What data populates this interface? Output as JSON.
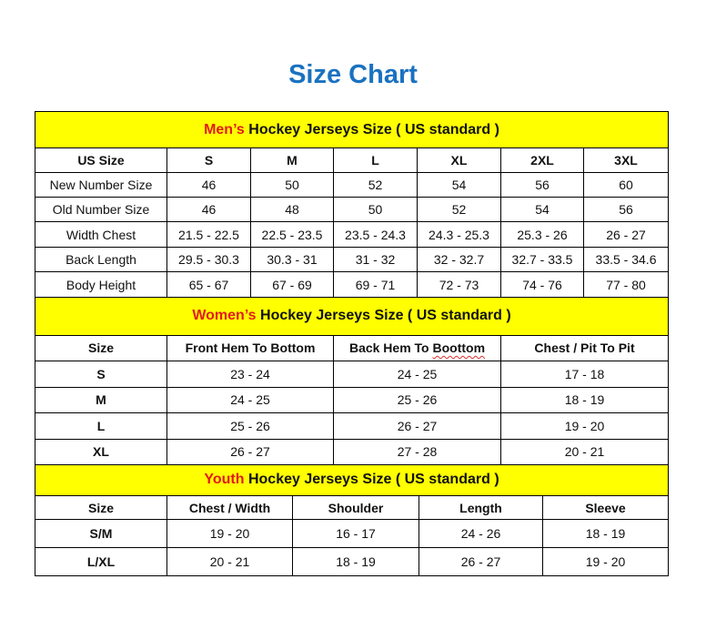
{
  "title": "Size Chart",
  "colors": {
    "title": "#1a72c0",
    "banner": "#ffff00",
    "accent": "#e31b1b"
  },
  "sections": [
    {
      "accent": "Men’s",
      "heading": " Hockey Jerseys Size ( US standard )",
      "columns": [
        "US Size",
        "S",
        "M",
        "L",
        "XL",
        "2XL",
        "3XL"
      ],
      "rows": [
        [
          "New Number Size",
          "46",
          "50",
          "52",
          "54",
          "56",
          "60"
        ],
        [
          "Old Number Size",
          "46",
          "48",
          "50",
          "52",
          "54",
          "56"
        ],
        [
          "Width Chest",
          "21.5 - 22.5",
          "22.5 - 23.5",
          "23.5 - 24.3",
          "24.3 - 25.3",
          "25.3 - 26",
          "26 - 27"
        ],
        [
          "Back Length",
          "29.5 - 30.3",
          "30.3 - 31",
          "31 - 32",
          "32 - 32.7",
          "32.7 - 33.5",
          "33.5 - 34.6"
        ],
        [
          "Body Height",
          "65 - 67",
          "67 - 69",
          "69 - 71",
          "72 - 73",
          "74 - 76",
          "77 - 80"
        ]
      ]
    },
    {
      "accent": "Women’s",
      "heading": " Hockey Jerseys Size ( US standard )",
      "columns": [
        "Size",
        "Front Hem To Bottom",
        "Back Hem To Boottom",
        "Chest / Pit To Pit"
      ],
      "rows": [
        [
          "S",
          "23 - 24",
          "24 - 25",
          "17 - 18"
        ],
        [
          "M",
          "24 - 25",
          "25 - 26",
          "18 - 19"
        ],
        [
          "L",
          "25 - 26",
          "26 - 27",
          "19 - 20"
        ],
        [
          "XL",
          "26 - 27",
          "27 - 28",
          "20 - 21"
        ]
      ]
    },
    {
      "accent": "Youth",
      "heading": " Hockey Jerseys Size ( US standard )",
      "columns": [
        "Size",
        "Chest / Width",
        "Shoulder",
        "Length",
        "Sleeve"
      ],
      "rows": [
        [
          "S/M",
          "19 - 20",
          "16 - 17",
          "24 - 26",
          "18 - 19"
        ],
        [
          "L/XL",
          "20 - 21",
          "18 - 19",
          "26 - 27",
          "19 - 20"
        ]
      ]
    }
  ]
}
